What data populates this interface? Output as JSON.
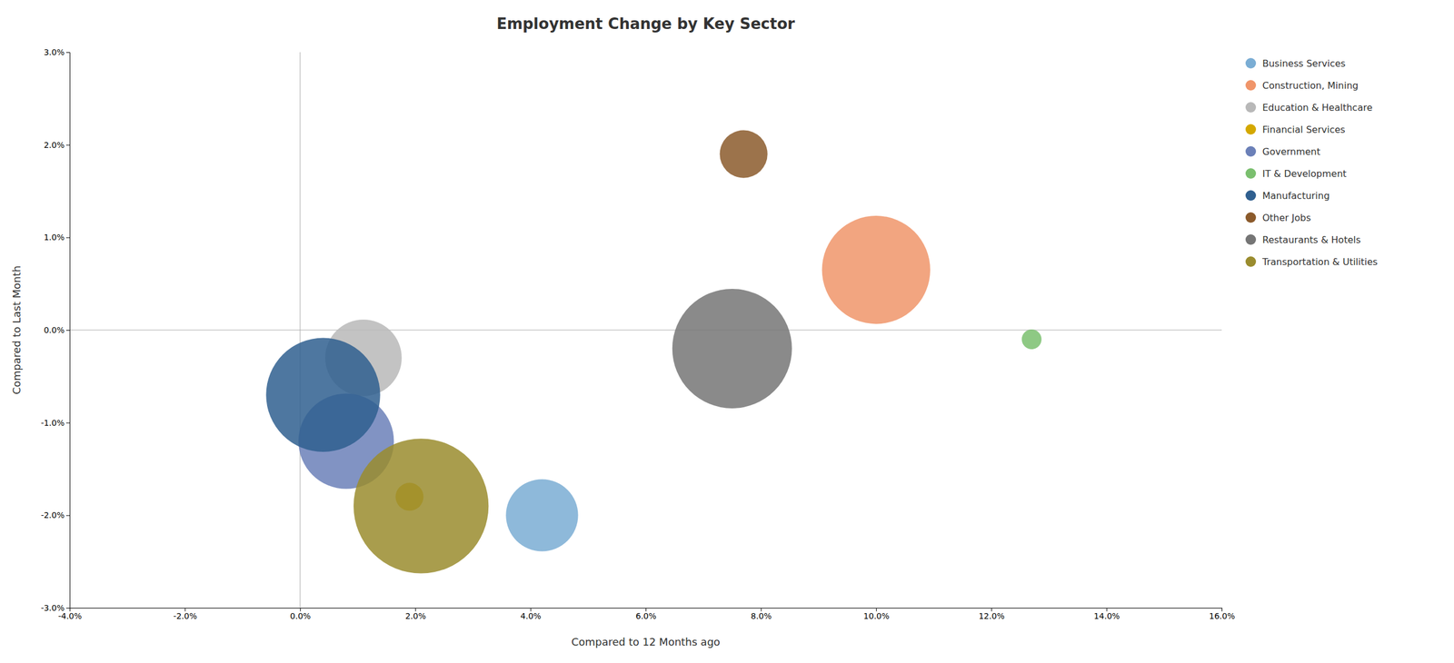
{
  "chart_data": {
    "type": "scatter",
    "title": "Employment Change by Key Sector",
    "x_label": "Compared to 12 Months ago",
    "y_label": "Compared to Last Month",
    "xlim": [
      -0.04,
      0.16
    ],
    "ylim": [
      -0.03,
      0.03
    ],
    "xticks": [
      {
        "value": -0.04,
        "label": "-4.0%"
      },
      {
        "value": -0.02,
        "label": "-2.0%"
      },
      {
        "value": 0.0,
        "label": "0.0%"
      },
      {
        "value": 0.02,
        "label": "2.0%"
      },
      {
        "value": 0.04,
        "label": "4.0%"
      },
      {
        "value": 0.06,
        "label": "6.0%"
      },
      {
        "value": 0.08,
        "label": "8.0%"
      },
      {
        "value": 0.1,
        "label": "10.0%"
      },
      {
        "value": 0.12,
        "label": "12.0%"
      },
      {
        "value": 0.14,
        "label": "14.0%"
      },
      {
        "value": 0.16,
        "label": "16.0%"
      }
    ],
    "yticks": [
      {
        "value": -0.03,
        "label": "-3.0%"
      },
      {
        "value": -0.02,
        "label": "-2.0%"
      },
      {
        "value": -0.01,
        "label": "-1.0%"
      },
      {
        "value": 0.0,
        "label": "0.0%"
      },
      {
        "value": 0.01,
        "label": "1.0%"
      },
      {
        "value": 0.02,
        "label": "2.0%"
      },
      {
        "value": 0.03,
        "label": "3.0%"
      }
    ],
    "grid": false,
    "legend": "upper right",
    "series": [
      {
        "name": "Business Services",
        "color": "#7aadd4",
        "x": [
          0.042
        ],
        "values": [
          -0.02
        ],
        "size": [
          8000
        ]
      },
      {
        "name": "Construction, Mining",
        "color": "#f0956a",
        "x": [
          0.1
        ],
        "values": [
          0.0065
        ],
        "size": [
          18000
        ]
      },
      {
        "name": "Education & Healthcare",
        "color": "#b8b8b8",
        "x": [
          0.011
        ],
        "values": [
          -0.003
        ],
        "size": [
          9000
        ]
      },
      {
        "name": "Financial Services",
        "color": "#d4a800",
        "x": [
          0.019
        ],
        "values": [
          -0.018
        ],
        "size": [
          1200
        ]
      },
      {
        "name": "Government",
        "color": "#6b80b8",
        "x": [
          0.008
        ],
        "values": [
          -0.012
        ],
        "size": [
          14000
        ]
      },
      {
        "name": "IT & Development",
        "color": "#7abf6e",
        "x": [
          0.127
        ],
        "values": [
          -0.001
        ],
        "size": [
          600
        ]
      },
      {
        "name": "Manufacturing",
        "color": "#2f5f8f",
        "x": [
          0.004
        ],
        "values": [
          -0.007
        ],
        "size": [
          20000
        ]
      },
      {
        "name": "Other Jobs",
        "color": "#8b5a2b",
        "x": [
          0.077
        ],
        "values": [
          0.019
        ],
        "size": [
          3500
        ]
      },
      {
        "name": "Restaurants & Hotels",
        "color": "#757575",
        "x": [
          0.075
        ],
        "values": [
          -0.002
        ],
        "size": [
          22000
        ]
      },
      {
        "name": "Transportation & Utilities",
        "color": "#9a8c2e",
        "x": [
          0.021
        ],
        "values": [
          -0.019
        ],
        "size": [
          28000
        ]
      }
    ]
  }
}
